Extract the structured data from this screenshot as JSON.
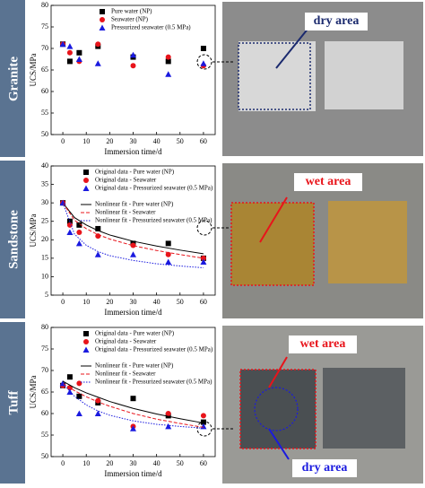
{
  "chart_data": [
    {
      "type": "scatter",
      "xlabel": "Immersion time/d",
      "ylabel": "UCS/MPa",
      "xlim": [
        -5,
        65
      ],
      "xticks": [
        0,
        10,
        20,
        30,
        40,
        50,
        60
      ],
      "ylim": [
        50,
        80
      ],
      "yticks": [
        50,
        55,
        60,
        65,
        70,
        75,
        80
      ],
      "series": [
        {
          "name": "Pure water (NP)",
          "color": "#000000",
          "marker": "square",
          "x": [
            0,
            3,
            7,
            15,
            30,
            45,
            60
          ],
          "values": [
            71,
            67,
            69,
            70.5,
            68,
            67,
            70
          ]
        },
        {
          "name": "Seawater (NP)",
          "color": "#e8141b",
          "marker": "circle",
          "x": [
            0,
            3,
            7,
            15,
            30,
            45,
            60
          ],
          "values": [
            71,
            69,
            67,
            71,
            66,
            68,
            66
          ]
        },
        {
          "name": "Pressurized seawater (0.5 MPa)",
          "color": "#1a1adf",
          "marker": "triangle",
          "x": [
            0,
            3,
            7,
            15,
            30,
            45,
            60
          ],
          "values": [
            71,
            70.5,
            67.5,
            66.5,
            68.5,
            64,
            66.5
          ]
        }
      ]
    },
    {
      "type": "scatter",
      "xlabel": "Immersion time/d",
      "ylabel": "UCS/MPa",
      "xlim": [
        -5,
        65
      ],
      "xticks": [
        0,
        10,
        20,
        30,
        40,
        50,
        60
      ],
      "ylim": [
        5,
        40
      ],
      "yticks": [
        5,
        10,
        15,
        20,
        25,
        30,
        35,
        40
      ],
      "series": [
        {
          "name": "Original data - Pure water (NP)",
          "color": "#000000",
          "marker": "square",
          "x": [
            0,
            3,
            7,
            15,
            30,
            45,
            60
          ],
          "values": [
            30,
            25,
            24,
            23,
            19,
            19,
            15
          ]
        },
        {
          "name": "Original data - Seawater",
          "color": "#e8141b",
          "marker": "circle",
          "x": [
            0,
            3,
            7,
            15,
            30,
            45,
            60
          ],
          "values": [
            30,
            24,
            22,
            21,
            18.5,
            16,
            15
          ]
        },
        {
          "name": "Original data - Pressurized seawater (0.5 MPa)",
          "color": "#1a1adf",
          "marker": "triangle",
          "x": [
            0,
            3,
            7,
            15,
            30,
            45,
            60
          ],
          "values": [
            30,
            22,
            19,
            16,
            16,
            14,
            14
          ]
        },
        {
          "name": "Nonlinear fit - Pure water (NP)",
          "color": "#000000",
          "line": "solid",
          "x": [
            0,
            5,
            10,
            15,
            20,
            30,
            40,
            50,
            60
          ],
          "values": [
            30,
            26,
            24,
            22.5,
            21.3,
            19.6,
            18.3,
            17.2,
            16.2
          ]
        },
        {
          "name": "Nonlinear fit - Seawater",
          "color": "#e8141b",
          "line": "dashed",
          "x": [
            0,
            5,
            10,
            15,
            20,
            30,
            40,
            50,
            60
          ],
          "values": [
            30,
            25.3,
            23,
            21.4,
            20.2,
            18.4,
            17.1,
            16,
            15
          ]
        },
        {
          "name": "Nonlinear fit - Pressurized seawater (0.5 MPa)",
          "color": "#1a1adf",
          "line": "dotted",
          "x": [
            0,
            5,
            10,
            15,
            20,
            30,
            40,
            50,
            60
          ],
          "values": [
            30,
            21.5,
            18.5,
            16.8,
            15.7,
            14.4,
            13.5,
            12.9,
            12.4
          ]
        }
      ]
    },
    {
      "type": "scatter",
      "xlabel": "Immersion time/d",
      "ylabel": "UCS/MPa",
      "xlim": [
        -5,
        65
      ],
      "xticks": [
        0,
        10,
        20,
        30,
        40,
        50,
        60
      ],
      "ylim": [
        50,
        80
      ],
      "yticks": [
        50,
        55,
        60,
        65,
        70,
        75,
        80
      ],
      "series": [
        {
          "name": "Original data - Pure water (NP)",
          "color": "#000000",
          "marker": "square",
          "x": [
            0,
            3,
            7,
            15,
            30,
            45,
            60
          ],
          "values": [
            66.5,
            68.5,
            64,
            62.5,
            63.5,
            59.5,
            58
          ]
        },
        {
          "name": "Original data - Seawater",
          "color": "#e8141b",
          "marker": "circle",
          "x": [
            0,
            3,
            7,
            15,
            30,
            45,
            60
          ],
          "values": [
            66.5,
            66,
            67,
            63,
            57,
            60,
            59.5
          ]
        },
        {
          "name": "Original data - Pressurized seawater (0.5 MPa)",
          "color": "#1a1adf",
          "marker": "triangle",
          "x": [
            0,
            3,
            7,
            15,
            30,
            45,
            60
          ],
          "values": [
            67,
            65,
            60,
            60,
            56.5,
            57,
            57
          ]
        },
        {
          "name": "Nonlinear fit - Pure water (NP)",
          "color": "#000000",
          "line": "solid",
          "x": [
            0,
            5,
            10,
            15,
            20,
            30,
            40,
            50,
            60
          ],
          "values": [
            67.5,
            66,
            64.8,
            63.8,
            62.8,
            61.2,
            59.9,
            58.8,
            57.8
          ]
        },
        {
          "name": "Nonlinear fit - Seawater",
          "color": "#e8141b",
          "line": "dashed",
          "x": [
            0,
            5,
            10,
            15,
            20,
            30,
            40,
            50,
            60
          ],
          "values": [
            67,
            65.3,
            63.9,
            62.7,
            61.7,
            60,
            58.7,
            57.7,
            56.8
          ]
        },
        {
          "name": "Nonlinear fit - Pressurized seawater (0.5 MPa)",
          "color": "#1a1adf",
          "line": "dotted",
          "x": [
            0,
            5,
            10,
            15,
            20,
            30,
            40,
            50,
            60
          ],
          "values": [
            67,
            64,
            62,
            60.6,
            59.6,
            58.3,
            57.5,
            57,
            56.6
          ]
        }
      ]
    }
  ],
  "panels": [
    {
      "label": "Granite",
      "annotations": [
        "dry area"
      ]
    },
    {
      "label": "Sandstone",
      "annotations": [
        "wet area"
      ]
    },
    {
      "label": "Tuff",
      "annotations": [
        "wet area",
        "dry area"
      ]
    }
  ]
}
